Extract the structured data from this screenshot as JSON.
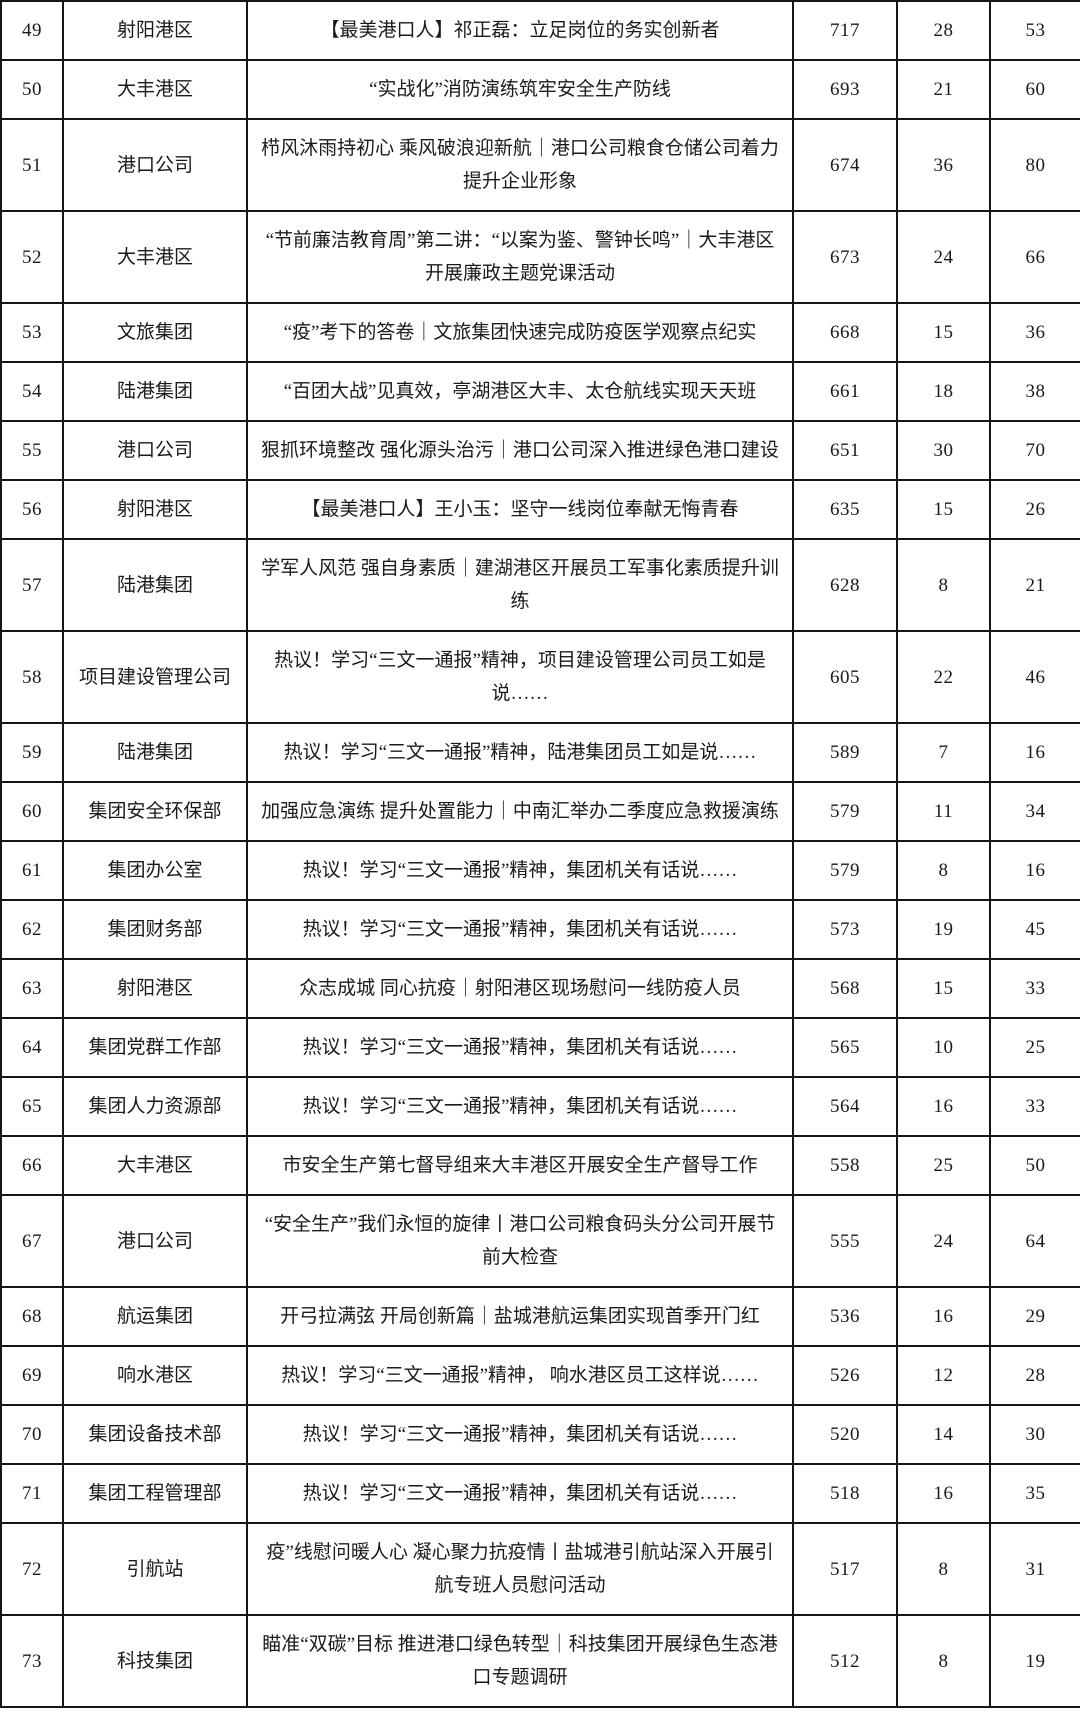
{
  "page": {
    "background_color": "#ffffff",
    "text_color": "#1a1a1a",
    "border_color": "#151515",
    "description": "portion of a ranked article statistics table, rows 49-73"
  },
  "table": {
    "header_visible": false,
    "rows": [
      {
        "no": "49",
        "department": "射阳港区",
        "title": "【最美港口人】祁正磊：立足岗位的务实创新者",
        "n1": "717",
        "n2": "28",
        "n3": "53"
      },
      {
        "no": "50",
        "department": "大丰港区",
        "title": "“实战化”消防演练筑牢安全生产防线",
        "n1": "693",
        "n2": "21",
        "n3": "60"
      },
      {
        "no": "51",
        "department": "港口公司",
        "title": "栉风沐雨持初心 乘风破浪迎新航｜港口公司粮食仓储公司着力提升企业形象",
        "n1": "674",
        "n2": "36",
        "n3": "80"
      },
      {
        "no": "52",
        "department": "大丰港区",
        "title": "“节前廉洁教育周”第二讲：“以案为鉴、警钟长鸣”｜大丰港区开展廉政主题党课活动",
        "n1": "673",
        "n2": "24",
        "n3": "66"
      },
      {
        "no": "53",
        "department": "文旅集团",
        "title": "“疫”考下的答卷｜文旅集团快速完成防疫医学观察点纪实",
        "n1": "668",
        "n2": "15",
        "n3": "36"
      },
      {
        "no": "54",
        "department": "陆港集团",
        "title": "“百团大战”见真效，亭湖港区大丰、太仓航线实现天天班",
        "n1": "661",
        "n2": "18",
        "n3": "38"
      },
      {
        "no": "55",
        "department": "港口公司",
        "title": "狠抓环境整改 强化源头治污｜港口公司深入推进绿色港口建设",
        "n1": "651",
        "n2": "30",
        "n3": "70"
      },
      {
        "no": "56",
        "department": "射阳港区",
        "title": "【最美港口人】王小玉：坚守一线岗位奉献无悔青春",
        "n1": "635",
        "n2": "15",
        "n3": "26"
      },
      {
        "no": "57",
        "department": "陆港集团",
        "title": "学军人风范 强自身素质｜建湖港区开展员工军事化素质提升训练",
        "n1": "628",
        "n2": "8",
        "n3": "21"
      },
      {
        "no": "58",
        "department": "项目建设管理公司",
        "title": "热议！学习“三文一通报”精神，项目建设管理公司员工如是说……",
        "n1": "605",
        "n2": "22",
        "n3": "46"
      },
      {
        "no": "59",
        "department": "陆港集团",
        "title": "热议！学习“三文一通报”精神，陆港集团员工如是说……",
        "n1": "589",
        "n2": "7",
        "n3": "16"
      },
      {
        "no": "60",
        "department": "集团安全环保部",
        "title": "加强应急演练 提升处置能力｜中南汇举办二季度应急救援演练",
        "n1": "579",
        "n2": "11",
        "n3": "34"
      },
      {
        "no": "61",
        "department": "集团办公室",
        "title": "热议！学习“三文一通报”精神，集团机关有话说……",
        "n1": "579",
        "n2": "8",
        "n3": "16"
      },
      {
        "no": "62",
        "department": "集团财务部",
        "title": "热议！学习“三文一通报”精神，集团机关有话说……",
        "n1": "573",
        "n2": "19",
        "n3": "45"
      },
      {
        "no": "63",
        "department": "射阳港区",
        "title": "众志成城 同心抗疫｜射阳港区现场慰问一线防疫人员",
        "n1": "568",
        "n2": "15",
        "n3": "33"
      },
      {
        "no": "64",
        "department": "集团党群工作部",
        "title": "热议！学习“三文一通报”精神，集团机关有话说……",
        "n1": "565",
        "n2": "10",
        "n3": "25"
      },
      {
        "no": "65",
        "department": "集团人力资源部",
        "title": "热议！学习“三文一通报”精神，集团机关有话说……",
        "n1": "564",
        "n2": "16",
        "n3": "33"
      },
      {
        "no": "66",
        "department": "大丰港区",
        "title": "市安全生产第七督导组来大丰港区开展安全生产督导工作",
        "n1": "558",
        "n2": "25",
        "n3": "50"
      },
      {
        "no": "67",
        "department": "港口公司",
        "title": "“安全生产”我们永恒的旋律丨港口公司粮食码头分公司开展节前大检查",
        "n1": "555",
        "n2": "24",
        "n3": "64"
      },
      {
        "no": "68",
        "department": "航运集团",
        "title": "开弓拉满弦 开局创新篇｜盐城港航运集团实现首季开门红",
        "n1": "536",
        "n2": "16",
        "n3": "29"
      },
      {
        "no": "69",
        "department": "响水港区",
        "title": "热议！学习“三文一通报”精神， 响水港区员工这样说……",
        "n1": "526",
        "n2": "12",
        "n3": "28"
      },
      {
        "no": "70",
        "department": "集团设备技术部",
        "title": "热议！学习“三文一通报”精神，集团机关有话说……",
        "n1": "520",
        "n2": "14",
        "n3": "30"
      },
      {
        "no": "71",
        "department": "集团工程管理部",
        "title": "热议！学习“三文一通报”精神，集团机关有话说……",
        "n1": "518",
        "n2": "16",
        "n3": "35"
      },
      {
        "no": "72",
        "department": "引航站",
        "title": "疫”线慰问暖人心 凝心聚力抗疫情丨盐城港引航站深入开展引航专班人员慰问活动",
        "n1": "517",
        "n2": "8",
        "n3": "31"
      },
      {
        "no": "73",
        "department": "科技集团",
        "title": "瞄准“双碳”目标 推进港口绿色转型｜科技集团开展绿色生态港口专题调研",
        "n1": "512",
        "n2": "8",
        "n3": "19"
      }
    ]
  }
}
